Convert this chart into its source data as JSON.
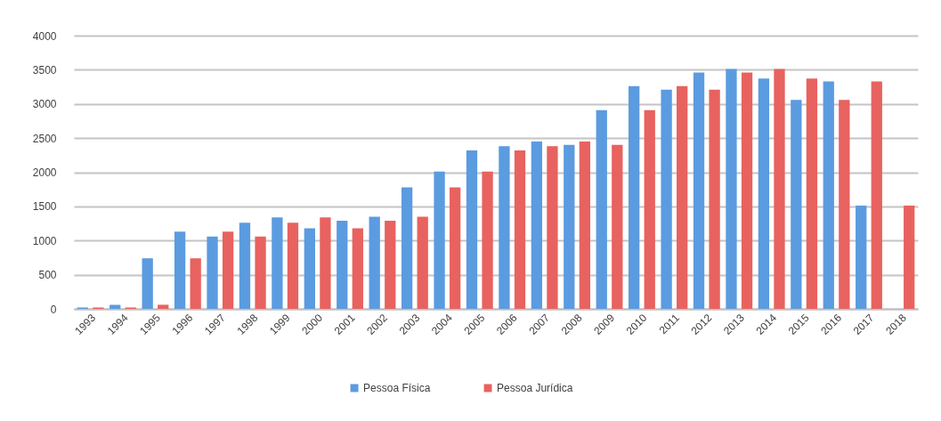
{
  "chart_data": {
    "type": "bar",
    "categories": [
      "1993",
      "1994",
      "1995",
      "1996",
      "1997",
      "1998",
      "1999",
      "2000",
      "2001",
      "2002",
      "2003",
      "2004",
      "2005",
      "2006",
      "2007",
      "2008",
      "2009",
      "2010",
      "2011",
      "2012",
      "2013",
      "2014",
      "2015",
      "2016",
      "2017",
      "2018"
    ],
    "series": [
      {
        "name": "Pessoa Física",
        "color": "#5b9be0",
        "values": [
          20,
          60,
          740,
          1130,
          1060,
          1260,
          1340,
          1180,
          1290,
          1350,
          1780,
          2010,
          2320,
          2380,
          2450,
          2400,
          2910,
          3260,
          3210,
          3460,
          3510,
          3370,
          3060,
          3330,
          1510,
          null
        ]
      },
      {
        "name": "Pessoa Jurídica",
        "color": "#e8625f",
        "values": [
          20,
          20,
          60,
          740,
          1130,
          1060,
          1260,
          1340,
          1180,
          1290,
          1350,
          1780,
          2010,
          2320,
          2380,
          2450,
          2400,
          2910,
          3260,
          3210,
          3460,
          3510,
          3370,
          3060,
          3330,
          1510
        ]
      }
    ],
    "ylim": [
      0,
      4000
    ],
    "yticks": [
      0,
      500,
      1000,
      1500,
      2000,
      2500,
      3000,
      3500,
      4000
    ],
    "grid": "y",
    "legend": "bottom"
  }
}
